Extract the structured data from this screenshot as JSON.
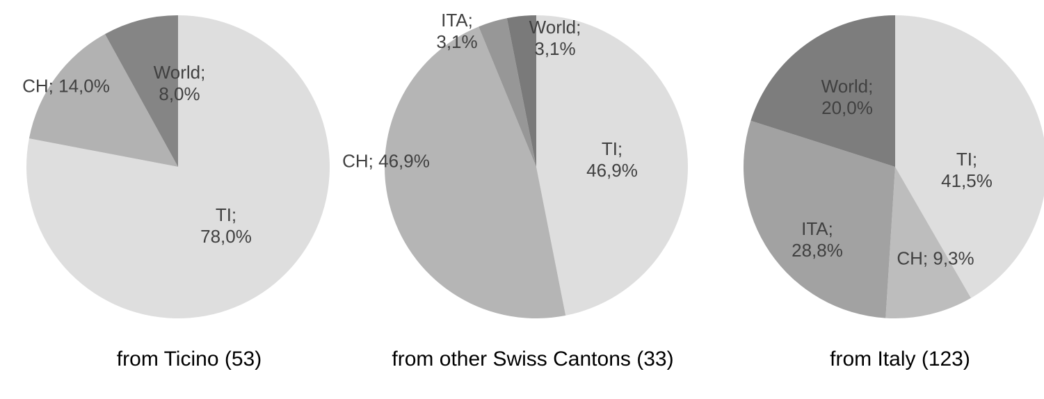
{
  "chart_data": [
    {
      "type": "pie",
      "title": "from Ticino (53)",
      "values": [
        78.0,
        14.0,
        8.0
      ],
      "value_labels": [
        "TI; 78,0%",
        "CH; 14,0%",
        "World; 8,0%"
      ],
      "colors": [
        "#dedede",
        "#b2b2b2",
        "#858585"
      ]
    },
    {
      "type": "pie",
      "title": "from other Swiss Cantons (33)",
      "values": [
        46.9,
        46.9,
        3.1,
        3.1
      ],
      "value_labels": [
        "TI; 46,9%",
        "CH; 46,9%",
        "ITA; 3,1%",
        "World; 3,1%"
      ],
      "colors": [
        "#dedede",
        "#b5b5b5",
        "#979797",
        "#7a7a7a"
      ]
    },
    {
      "type": "pie",
      "title": "from Italy (123)",
      "values": [
        41.5,
        9.3,
        28.8,
        20.0
      ],
      "value_labels": [
        "TI; 41,5%",
        "CH; 9,3%",
        "ITA; 28,8%",
        "World; 20,0%"
      ],
      "colors": [
        "#dedede",
        "#bdbdbd",
        "#a2a2a2",
        "#7d7d7d"
      ]
    }
  ]
}
